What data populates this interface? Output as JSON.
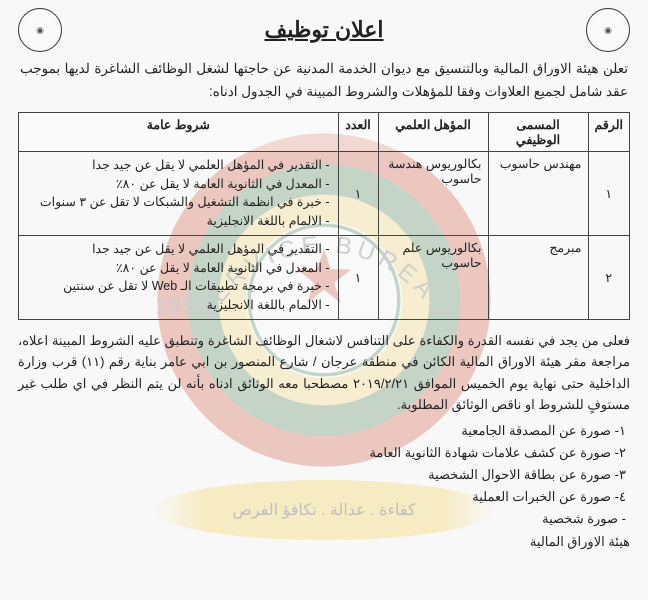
{
  "title": "اعلان توظيف",
  "intro": "تعلن هيئة الاوراق المالية وبالتنسيق مع ديوان الخدمة المدنية عن حاجتها لشغل الوظائف الشاغرة لديها بموجب عقد شامل لجميع العلاوات وفقا للمؤهلات والشروط المبينة في الجدول ادناه:",
  "table": {
    "headers": {
      "num": "الرقم",
      "job": "المسمى الوظيفي",
      "qual": "المؤهل العلمي",
      "count": "العدد",
      "cond": "شروط عامة"
    },
    "rows": [
      {
        "num": "١",
        "job": "مهندس حاسوب",
        "qual": "بكالوريوس هندسة حاسوب",
        "count": "١",
        "conds": [
          "التقدير في المؤهل العلمي لا يقل عن جيد جدا",
          "المعدل في الثانوية العامة لا يقل عن ٨٠٪",
          "خبرة في انظمة التشغيل والشبكات لا تقل عن ٣ سنوات",
          "الالمام باللغة الانجليزية"
        ]
      },
      {
        "num": "٢",
        "job": "مبرمج",
        "qual": "بكالوريوس علم حاسوب",
        "count": "١",
        "conds": [
          "التقدير في المؤهل العلمي لا يقل عن جيد جدا",
          "المعدل في الثانوية العامة لا يقل عن ٨٠٪",
          "خبرة في برمجة تطبيقات الـ Web لا تقل عن سنتين",
          "الالمام باللغة الانجليزية"
        ]
      }
    ]
  },
  "para": "فعلى من يجد في نفسه القدرة والكفاءة على التنافس لاشغال الوظائف الشاغرة وتنطبق عليه الشروط المبينة اعلاه، مراجعة مقر هيئة الاوراق المالية الكائن في منطقة عرجان / شارع المنصور بن ابي عامر بناية رقم (١١) قرب وزارة الداخلية حتى نهاية يوم الخميس الموافق ٢٠١٩/٢/٢١ مصطحبا معه الوثائق ادناه بأنه لن يتم النظر في اي طلب غير مستوفٍ للشروط او ناقص الوثائق المطلوبة.",
  "docs": [
    "١- صورة عن المصدقة الجامعية",
    "٢- صورة عن كشف علامات شهادة الثانوية العامة",
    "٣- صورة عن بطاقة الاحوال الشخصية",
    "٤- صورة عن الخبرات العملية",
    "- صورة شخصية"
  ],
  "footer": "هيئة الاوراق المالية",
  "banner": "كفاءة . عدالة . تكافؤ الفرص",
  "seal_colors": {
    "outer": "#c73a1e",
    "mid": "#2d6b3a",
    "ring": "#f5d460",
    "inner": "#ffffff"
  }
}
